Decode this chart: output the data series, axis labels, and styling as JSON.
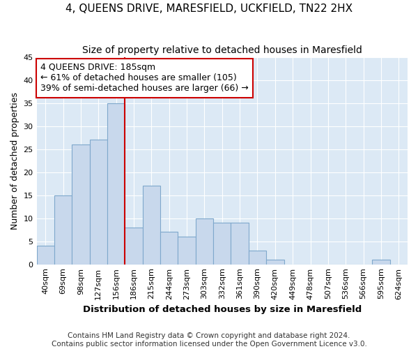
{
  "title": "4, QUEENS DRIVE, MARESFIELD, UCKFIELD, TN22 2HX",
  "subtitle": "Size of property relative to detached houses in Maresfield",
  "xlabel": "Distribution of detached houses by size in Maresfield",
  "ylabel": "Number of detached properties",
  "bar_labels": [
    "40sqm",
    "69sqm",
    "98sqm",
    "127sqm",
    "156sqm",
    "186sqm",
    "215sqm",
    "244sqm",
    "273sqm",
    "303sqm",
    "332sqm",
    "361sqm",
    "390sqm",
    "420sqm",
    "449sqm",
    "478sqm",
    "507sqm",
    "536sqm",
    "566sqm",
    "595sqm",
    "624sqm"
  ],
  "bar_values": [
    4,
    15,
    26,
    27,
    35,
    8,
    17,
    7,
    6,
    10,
    9,
    9,
    3,
    1,
    0,
    0,
    0,
    0,
    0,
    1,
    0
  ],
  "bar_color": "#c8d8ec",
  "bar_edgecolor": "#7fa8cc",
  "vline_bin_index": 5,
  "vline_color": "#cc0000",
  "annotation_line1": "4 QUEENS DRIVE: 185sqm",
  "annotation_line2": "← 61% of detached houses are smaller (105)",
  "annotation_line3": "39% of semi-detached houses are larger (66) →",
  "annotation_box_edgecolor": "#cc0000",
  "annotation_box_facecolor": "#ffffff",
  "ylim": [
    0,
    45
  ],
  "yticks": [
    0,
    5,
    10,
    15,
    20,
    25,
    30,
    35,
    40,
    45
  ],
  "background_color": "#dce9f5",
  "grid_color": "#ffffff",
  "fig_background": "#ffffff",
  "title_fontsize": 11,
  "subtitle_fontsize": 10,
  "xlabel_fontsize": 9.5,
  "ylabel_fontsize": 9,
  "tick_fontsize": 8,
  "footer_fontsize": 7.5,
  "annotation_fontsize": 9,
  "footer_line1": "Contains HM Land Registry data © Crown copyright and database right 2024.",
  "footer_line2": "Contains public sector information licensed under the Open Government Licence v3.0."
}
